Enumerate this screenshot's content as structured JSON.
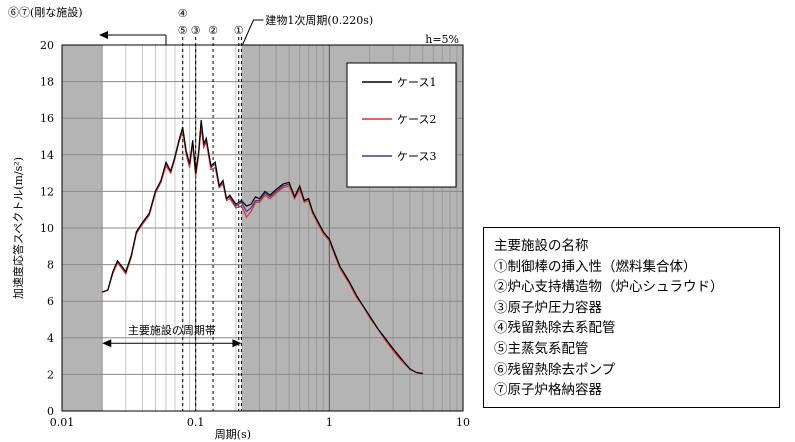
{
  "chart_data": {
    "type": "line",
    "title": "",
    "xlabel": "周期(s)",
    "ylabel": "加速度応答スペクトル(m/s²)",
    "xscale": "log",
    "xlim": [
      0.01,
      10
    ],
    "ylim": [
      0,
      20
    ],
    "xtick_labels": [
      "0.01",
      "0.1",
      "1",
      "10"
    ],
    "ytick_labels": [
      "0",
      "2",
      "4",
      "6",
      "8",
      "10",
      "12",
      "14",
      "16",
      "18",
      "20"
    ],
    "damping_label": "h=5%",
    "grid": true,
    "legend_position": "top-right",
    "series": [
      {
        "name": "ケース1",
        "color": "#000000",
        "x": [
          0.02,
          0.022,
          0.024,
          0.026,
          0.028,
          0.03,
          0.033,
          0.036,
          0.04,
          0.045,
          0.05,
          0.055,
          0.06,
          0.065,
          0.07,
          0.075,
          0.08,
          0.085,
          0.09,
          0.095,
          0.1,
          0.105,
          0.11,
          0.115,
          0.12,
          0.13,
          0.14,
          0.15,
          0.16,
          0.17,
          0.18,
          0.2,
          0.22,
          0.24,
          0.26,
          0.28,
          0.3,
          0.33,
          0.36,
          0.4,
          0.45,
          0.5,
          0.55,
          0.6,
          0.65,
          0.7,
          0.75,
          0.8,
          0.9,
          1.0,
          1.1,
          1.2,
          1.4,
          1.6,
          1.8,
          2.0,
          2.3,
          2.6,
          3.0,
          3.5,
          4.0,
          4.5,
          5.0
        ],
        "y": [
          6.5,
          6.6,
          7.6,
          8.2,
          7.9,
          7.6,
          8.5,
          9.8,
          10.3,
          10.8,
          12.0,
          12.6,
          13.6,
          13.1,
          13.9,
          14.8,
          15.5,
          14.2,
          13.5,
          14.8,
          13.0,
          14.1,
          15.9,
          14.6,
          14.9,
          13.4,
          13.6,
          12.3,
          12.6,
          11.6,
          11.8,
          11.3,
          11.5,
          11.2,
          11.3,
          11.7,
          11.6,
          12.0,
          11.8,
          12.1,
          12.4,
          12.5,
          11.7,
          12.3,
          11.5,
          11.6,
          10.9,
          10.5,
          9.8,
          9.4,
          8.6,
          7.9,
          7.1,
          6.3,
          5.7,
          5.2,
          4.5,
          4.0,
          3.4,
          2.8,
          2.3,
          2.1,
          2.05
        ]
      },
      {
        "name": "ケース2",
        "color": "#e03030",
        "x": [
          0.02,
          0.022,
          0.024,
          0.026,
          0.028,
          0.03,
          0.033,
          0.036,
          0.04,
          0.045,
          0.05,
          0.055,
          0.06,
          0.065,
          0.07,
          0.075,
          0.08,
          0.085,
          0.09,
          0.095,
          0.1,
          0.105,
          0.11,
          0.115,
          0.12,
          0.13,
          0.14,
          0.15,
          0.16,
          0.17,
          0.18,
          0.2,
          0.22,
          0.24,
          0.26,
          0.28,
          0.3,
          0.33,
          0.36,
          0.4,
          0.45,
          0.5,
          0.55,
          0.6,
          0.65,
          0.7,
          0.75,
          0.8,
          0.9,
          1.0,
          1.1,
          1.2,
          1.4,
          1.6,
          1.8,
          2.0,
          2.3,
          2.6,
          3.0,
          3.5,
          4.0,
          4.5,
          5.0
        ],
        "y": [
          6.5,
          6.6,
          7.5,
          8.1,
          7.8,
          7.5,
          8.4,
          9.7,
          10.2,
          10.7,
          11.9,
          12.5,
          13.4,
          13.0,
          13.8,
          14.7,
          15.3,
          14.0,
          13.3,
          14.6,
          12.8,
          13.9,
          15.5,
          14.4,
          14.7,
          13.2,
          13.3,
          12.2,
          12.4,
          11.5,
          11.6,
          11.1,
          11.2,
          10.6,
          10.9,
          11.4,
          11.4,
          11.8,
          11.6,
          11.9,
          12.2,
          12.3,
          11.6,
          12.1,
          11.4,
          11.5,
          10.8,
          10.4,
          9.7,
          9.3,
          8.5,
          7.8,
          7.0,
          6.2,
          5.7,
          5.1,
          4.5,
          3.9,
          3.3,
          2.7,
          2.3,
          2.1,
          2.05
        ]
      },
      {
        "name": "ケース3",
        "color": "#3a3a9a",
        "x": [
          0.02,
          0.022,
          0.024,
          0.026,
          0.028,
          0.03,
          0.033,
          0.036,
          0.04,
          0.045,
          0.05,
          0.055,
          0.06,
          0.065,
          0.07,
          0.075,
          0.08,
          0.085,
          0.09,
          0.095,
          0.1,
          0.105,
          0.11,
          0.115,
          0.12,
          0.13,
          0.14,
          0.15,
          0.16,
          0.17,
          0.18,
          0.2,
          0.22,
          0.24,
          0.26,
          0.28,
          0.3,
          0.33,
          0.36,
          0.4,
          0.45,
          0.5,
          0.55,
          0.6,
          0.65,
          0.7,
          0.75,
          0.8,
          0.9,
          1.0,
          1.1,
          1.2,
          1.4,
          1.6,
          1.8,
          2.0,
          2.3,
          2.6,
          3.0,
          3.5,
          4.0,
          4.5,
          5.0
        ],
        "y": [
          6.5,
          6.6,
          7.6,
          8.2,
          7.9,
          7.6,
          8.5,
          9.8,
          10.3,
          10.8,
          12.0,
          12.6,
          13.5,
          13.1,
          13.9,
          14.8,
          15.4,
          14.1,
          13.4,
          14.7,
          12.9,
          14.0,
          15.7,
          14.5,
          14.8,
          13.3,
          13.5,
          12.3,
          12.5,
          11.6,
          11.7,
          11.2,
          11.4,
          10.9,
          11.1,
          11.5,
          11.5,
          11.9,
          11.7,
          12.0,
          12.3,
          12.4,
          11.7,
          12.2,
          11.5,
          11.6,
          10.9,
          10.5,
          9.8,
          9.4,
          8.6,
          7.9,
          7.1,
          6.3,
          5.7,
          5.2,
          4.5,
          4.0,
          3.4,
          2.8,
          2.3,
          2.1,
          2.05
        ]
      }
    ],
    "vertical_markers": [
      {
        "x": 0.08,
        "labels": [
          "④",
          "⑤"
        ]
      },
      {
        "x": 0.1,
        "labels": [
          "③"
        ]
      },
      {
        "x": 0.135,
        "labels": [
          "②"
        ]
      },
      {
        "x": 0.21,
        "labels": [
          "①"
        ]
      }
    ],
    "building_period_x": 0.22,
    "building_period_label": "建物1次周期(0.220s)",
    "rigid_label": "⑥⑦(剛な施設)",
    "band_label": "主要施設の周期帯",
    "band_x": [
      0.02,
      0.22
    ]
  },
  "facility_legend": {
    "title": "主要施設の名称",
    "items": [
      "①制御棒の挿入性（燃料集合体）",
      "②炉心支持構造物（炉心シュラウド）",
      "③原子炉圧力容器",
      "④残留熱除去系配管",
      "⑤主蒸気系配管",
      "⑥残留熱除去ポンプ",
      "⑦原子炉格納容器"
    ]
  }
}
